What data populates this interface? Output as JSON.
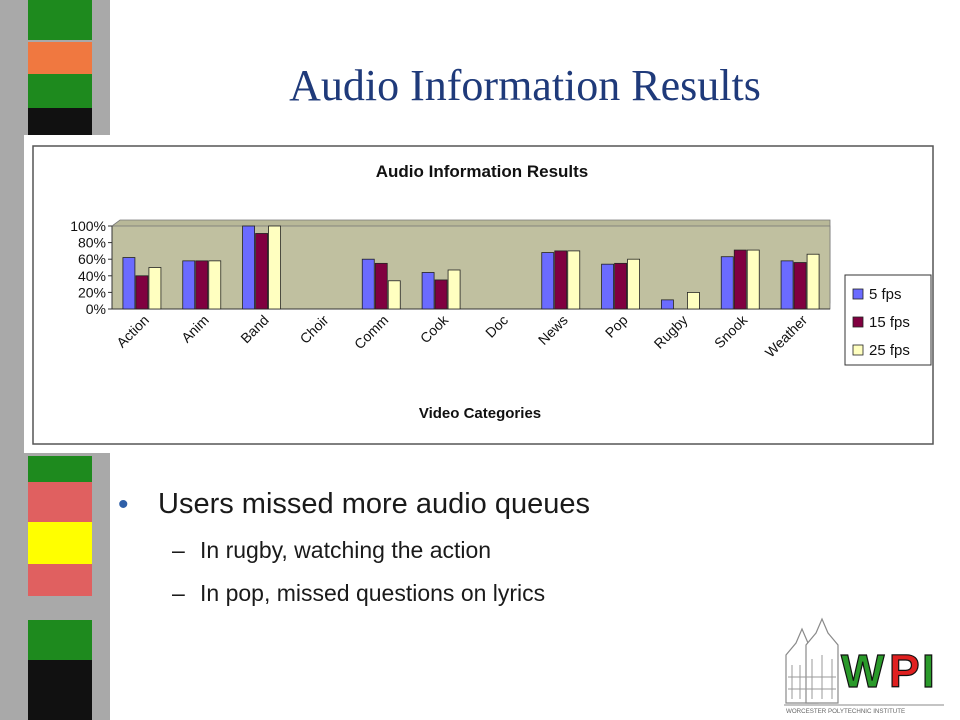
{
  "slide": {
    "title": "Audio Information Results",
    "bullets": [
      {
        "text": "Users missed more audio queues",
        "sub": [
          "In rugby, watching the action",
          "In pop, missed questions on lyrics"
        ]
      }
    ],
    "bullet_glyph": "•",
    "sub_glyph": "–"
  },
  "logo": {
    "mark": "WPI",
    "tagline": "WORCESTER POLYTECHNIC INSTITUTE"
  },
  "colors": {
    "title": "#1f3a7a",
    "plot_bg": "#c0c0a0",
    "s1": "#6b6bff",
    "s2": "#800040",
    "s3": "#ffffc0",
    "stripe_gray": "#a9a9a9",
    "wpi_green": "#2a9a2a",
    "wpi_red": "#e02020"
  },
  "chart_data": {
    "type": "bar",
    "title": "Audio Information Results",
    "xlabel": "Video Categories",
    "ylabel": "",
    "ylim": [
      0,
      100
    ],
    "yticks": [
      "0%",
      "20%",
      "40%",
      "60%",
      "80%",
      "100%"
    ],
    "categories": [
      "Action",
      "Anim",
      "Band",
      "Choir",
      "Comm",
      "Cook",
      "Doc",
      "News",
      "Pop",
      "Rugby",
      "Snook",
      "Weather"
    ],
    "series": [
      {
        "name": "5 fps",
        "values": [
          62,
          58,
          100,
          0,
          60,
          44,
          0,
          68,
          54,
          11,
          63,
          58
        ]
      },
      {
        "name": "15 fps",
        "values": [
          40,
          58,
          91,
          0,
          55,
          35,
          0,
          70,
          55,
          0,
          71,
          56
        ]
      },
      {
        "name": "25 fps",
        "values": [
          50,
          58,
          100,
          0,
          34,
          47,
          0,
          70,
          60,
          20,
          71,
          66
        ]
      }
    ],
    "legend_position": "right",
    "grid": false
  }
}
